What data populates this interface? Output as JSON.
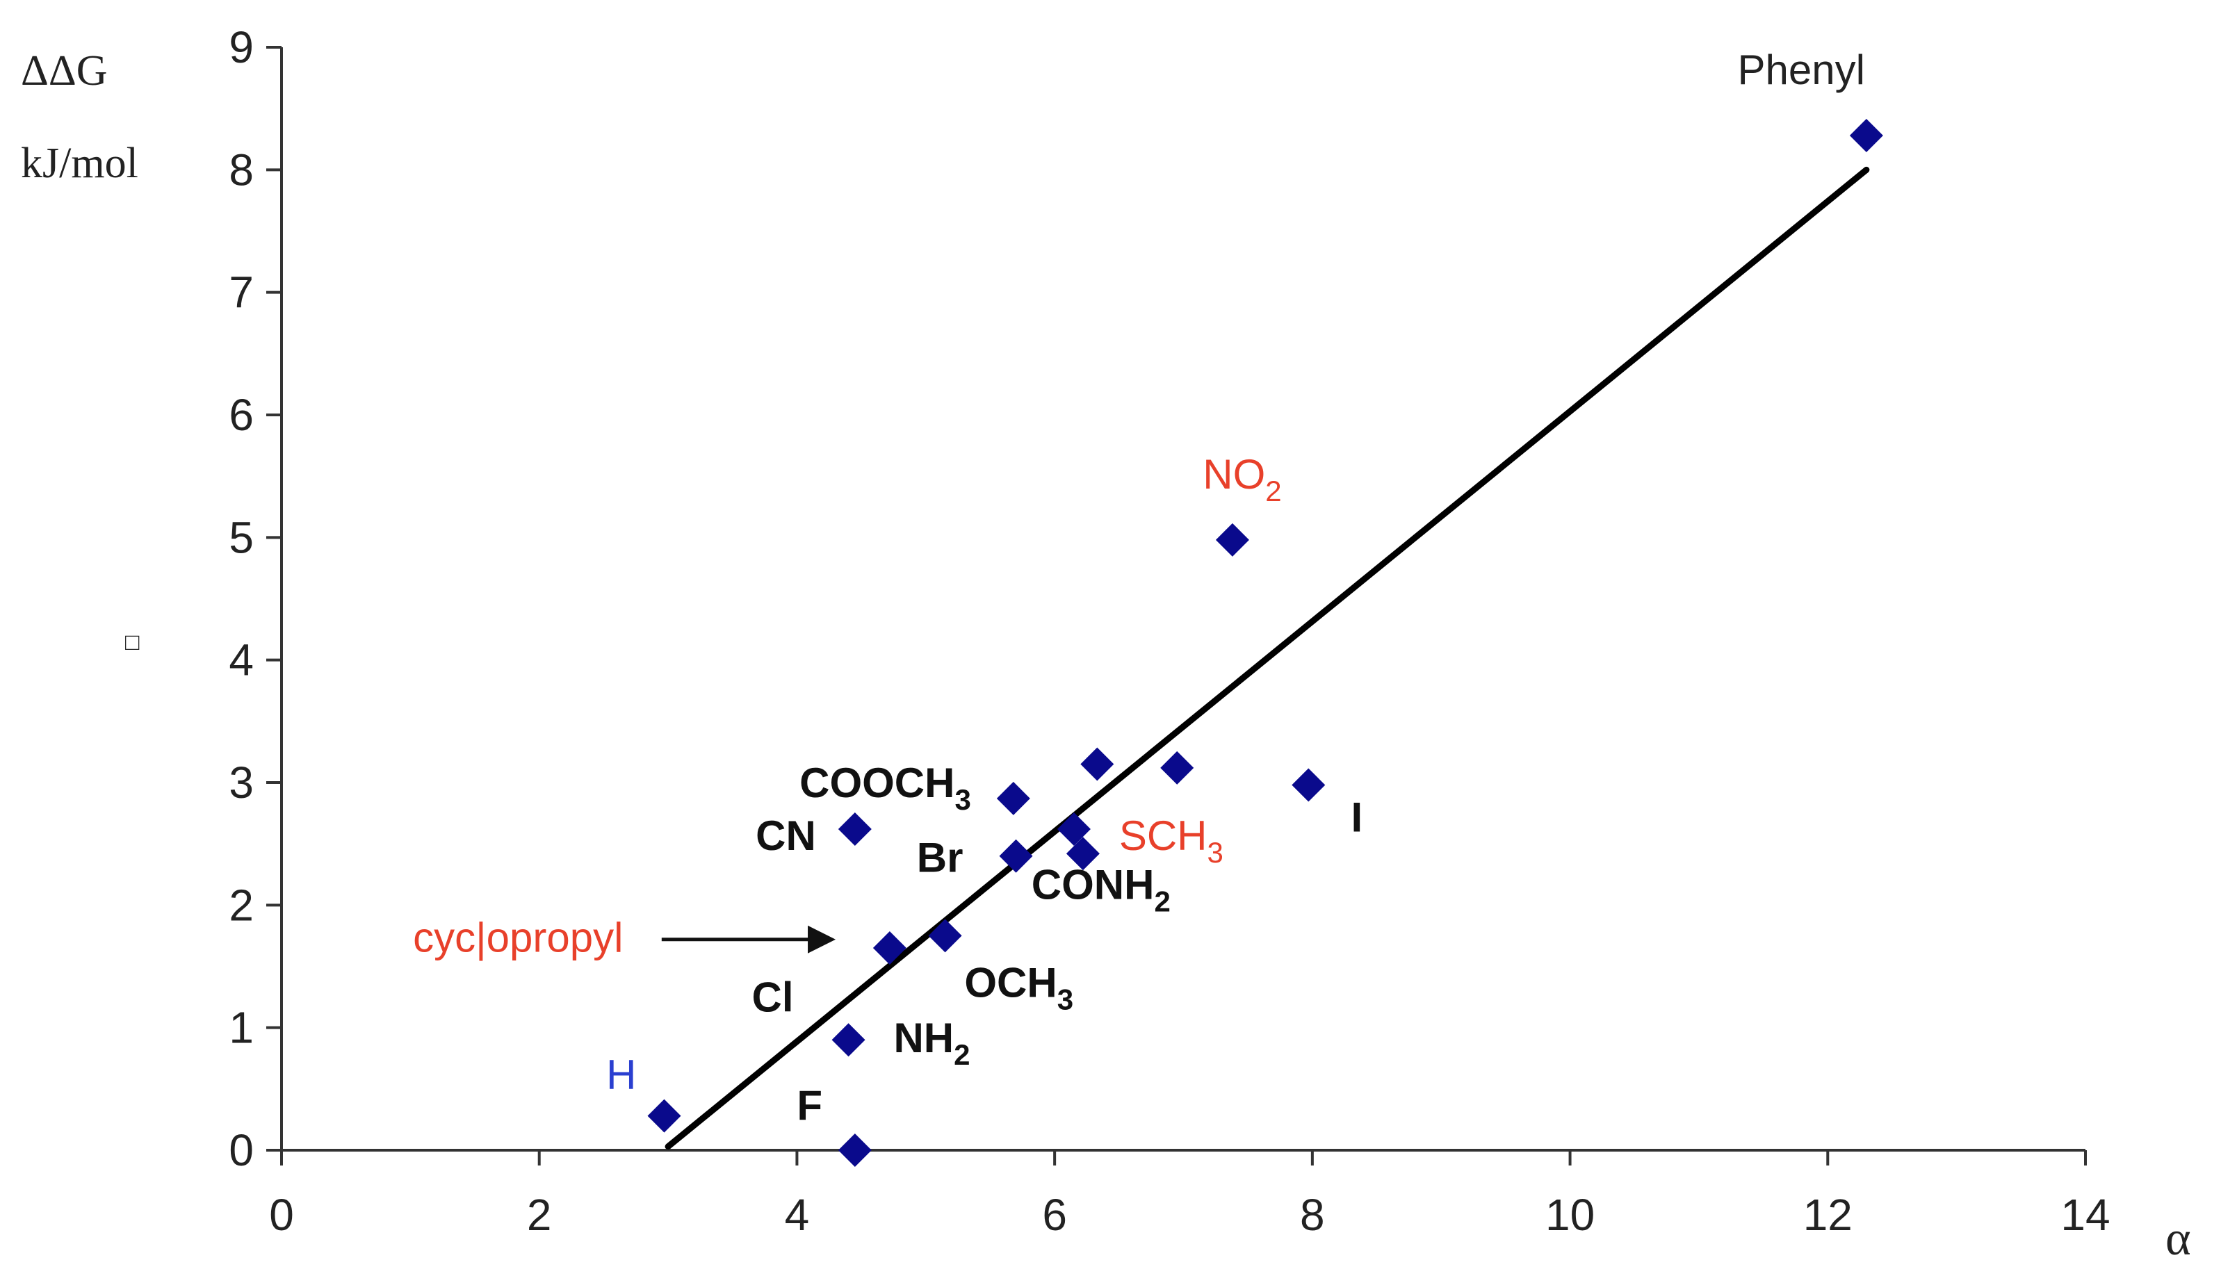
{
  "chart_data": {
    "type": "scatter",
    "ylabel_line1": "ΔΔG",
    "ylabel_line2": "kJ/mol",
    "xlabel": "α",
    "xlim": [
      0,
      14
    ],
    "ylim": [
      0,
      9
    ],
    "xticks": [
      "0",
      "2",
      "4",
      "6",
      "8",
      "10",
      "12",
      "14"
    ],
    "yticks": [
      "0",
      "1",
      "2",
      "3",
      "4",
      "5",
      "6",
      "7",
      "8",
      "9"
    ],
    "grid": false,
    "marker_color": "#0a0a8c",
    "trendline": {
      "x1": 3.0,
      "y1": 0.03,
      "x2": 12.3,
      "y2": 8.0
    },
    "points": [
      {
        "x": 2.97,
        "y": 0.28
      },
      {
        "x": 4.45,
        "y": 0.0
      },
      {
        "x": 4.4,
        "y": 0.9
      },
      {
        "x": 4.72,
        "y": 1.65
      },
      {
        "x": 5.15,
        "y": 1.75
      },
      {
        "x": 4.45,
        "y": 2.62
      },
      {
        "x": 5.68,
        "y": 2.87
      },
      {
        "x": 5.7,
        "y": 2.4
      },
      {
        "x": 6.15,
        "y": 2.62
      },
      {
        "x": 6.22,
        "y": 2.42
      },
      {
        "x": 6.33,
        "y": 3.15
      },
      {
        "x": 6.95,
        "y": 3.12
      },
      {
        "x": 7.97,
        "y": 2.98
      },
      {
        "x": 7.38,
        "y": 4.98
      },
      {
        "x": 12.3,
        "y": 8.28
      }
    ],
    "labels": [
      {
        "base": "Phenyl",
        "sub": "",
        "x": 11.3,
        "y": 8.7,
        "color": "#222222",
        "bold": false
      },
      {
        "base": "NO",
        "sub": "2",
        "x": 7.15,
        "y": 5.4,
        "color": "#e8402a",
        "bold": false
      },
      {
        "base": "COOCH",
        "sub": "3",
        "x": 4.02,
        "y": 2.88,
        "color": "#111111",
        "bold": true
      },
      {
        "base": "CN",
        "sub": "",
        "x": 3.68,
        "y": 2.45,
        "color": "#111111",
        "bold": true
      },
      {
        "base": "Br",
        "sub": "",
        "x": 4.93,
        "y": 2.27,
        "color": "#111111",
        "bold": true
      },
      {
        "base": "SCH",
        "sub": "3",
        "x": 6.5,
        "y": 2.45,
        "color": "#e8402a",
        "bold": false
      },
      {
        "base": "I",
        "sub": "",
        "x": 8.3,
        "y": 2.6,
        "color": "#111111",
        "bold": true
      },
      {
        "base": "CONH",
        "sub": "2",
        "x": 5.82,
        "y": 2.05,
        "color": "#111111",
        "bold": true
      },
      {
        "base": "cyc|opropyl",
        "sub": "",
        "x": 1.02,
        "y": 1.62,
        "color": "#e8402a",
        "bold": false
      },
      {
        "base": "Cl",
        "sub": "",
        "x": 3.65,
        "y": 1.13,
        "color": "#111111",
        "bold": true
      },
      {
        "base": "OCH",
        "sub": "3",
        "x": 5.3,
        "y": 1.25,
        "color": "#111111",
        "bold": true
      },
      {
        "base": "NH",
        "sub": "2",
        "x": 4.75,
        "y": 0.8,
        "color": "#111111",
        "bold": true
      },
      {
        "base": "H",
        "sub": "",
        "x": 2.52,
        "y": 0.5,
        "color": "#2a3fd0",
        "bold": false
      },
      {
        "base": "F",
        "sub": "",
        "x": 4.0,
        "y": 0.25,
        "color": "#111111",
        "bold": true
      }
    ],
    "arrow": {
      "x1": 2.95,
      "y1": 1.72,
      "x2": 4.3,
      "y2": 1.72
    },
    "stray_mark": "□"
  }
}
